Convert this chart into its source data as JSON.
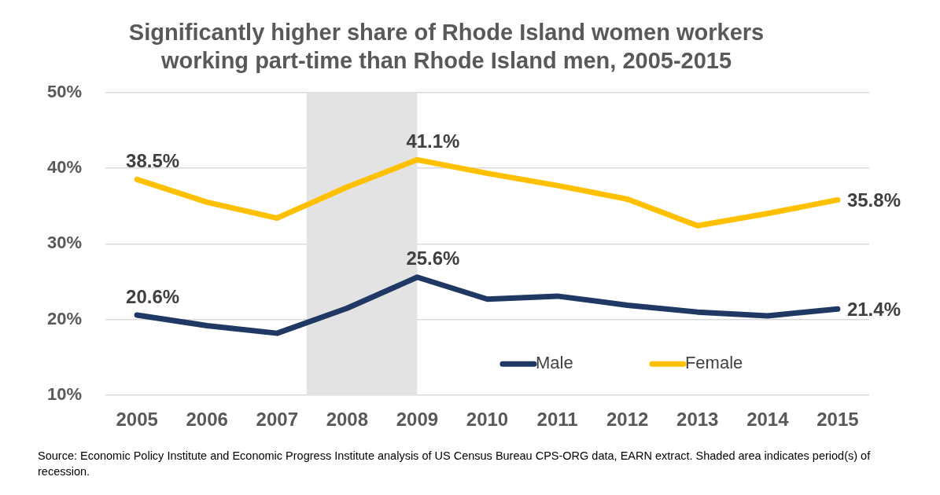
{
  "chart_data": {
    "type": "line",
    "title": "Significantly higher share of Rhode Island women workers\nworking part-time than Rhode Island men, 2005-2015",
    "x": [
      2005,
      2006,
      2007,
      2008,
      2009,
      2010,
      2011,
      2012,
      2013,
      2014,
      2015
    ],
    "xlim": [
      2004.55,
      2015.45
    ],
    "xticks": [
      2005,
      2006,
      2007,
      2008,
      2009,
      2010,
      2011,
      2012,
      2013,
      2014,
      2015
    ],
    "ylim": [
      10,
      50
    ],
    "yticks": [
      {
        "value": 10,
        "label": "10%"
      },
      {
        "value": 20,
        "label": "20%"
      },
      {
        "value": 30,
        "label": "30%"
      },
      {
        "value": 40,
        "label": "40%"
      },
      {
        "value": 50,
        "label": "50%"
      }
    ],
    "series": [
      {
        "name": "Male",
        "color": "#203864",
        "values": [
          20.6,
          19.2,
          18.2,
          21.5,
          25.6,
          22.7,
          23.1,
          21.9,
          21.0,
          20.5,
          21.4
        ],
        "value_labels": [
          "20.6%",
          null,
          null,
          null,
          "25.6%",
          null,
          null,
          null,
          null,
          null,
          "21.4%"
        ]
      },
      {
        "name": "Female",
        "color": "#ffc000",
        "values": [
          38.5,
          35.5,
          33.4,
          37.5,
          41.1,
          39.3,
          37.7,
          35.9,
          32.4,
          34.0,
          35.8
        ],
        "value_labels": [
          "38.5%",
          null,
          null,
          null,
          "41.1%",
          null,
          null,
          null,
          null,
          null,
          "35.8%"
        ]
      }
    ],
    "bands": [
      {
        "axis": "x",
        "from": 2007.42,
        "to": 2009,
        "color": "#e3e3e3"
      }
    ],
    "grid": "y",
    "legend": "bottom",
    "marker": "none",
    "line_style": "solid",
    "annotations": [
      "Source: Economic Policy Institute and Economic Progress Institute analysis of US Census Bureau CPS-ORG data, EARN extract. Shaded area indicates period(s) of recession."
    ]
  }
}
